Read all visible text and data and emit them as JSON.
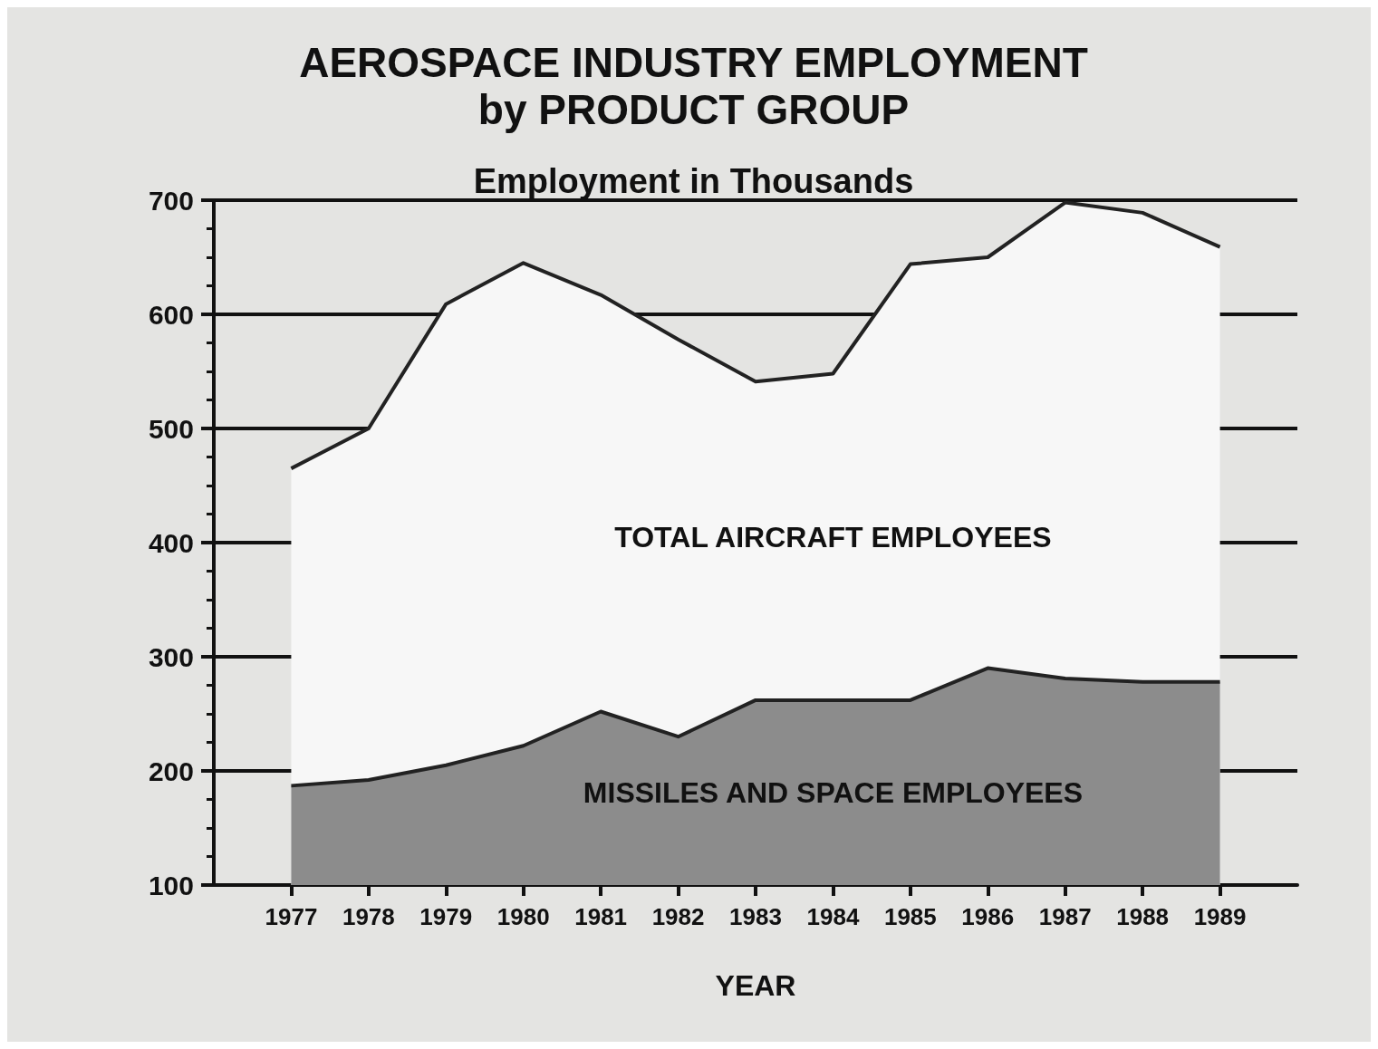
{
  "chart_data": {
    "type": "area",
    "title": "AEROSPACE INDUSTRY EMPLOYMENT\nby PRODUCT GROUP",
    "subtitle": "Employment in Thousands",
    "xlabel": "YEAR",
    "x": [
      1977,
      1978,
      1979,
      1980,
      1981,
      1982,
      1983,
      1984,
      1985,
      1986,
      1987,
      1988,
      1989
    ],
    "series": [
      {
        "name": "TOTAL AIRCRAFT EMPLOYEES",
        "color": "#f7f7f7",
        "values": [
          465,
          500,
          609,
          645,
          617,
          578,
          541,
          548,
          644,
          650,
          698,
          689,
          659
        ]
      },
      {
        "name": "MISSILES AND SPACE EMPLOYEES",
        "color": "#8c8c8c",
        "values": [
          187,
          192,
          205,
          222,
          252,
          230,
          262,
          262,
          262,
          290,
          281,
          278,
          278
        ]
      }
    ],
    "xlim": [
      1976,
      1990
    ],
    "xticks": [
      1977,
      1978,
      1979,
      1980,
      1981,
      1982,
      1983,
      1984,
      1985,
      1986,
      1987,
      1988,
      1989
    ],
    "ylim": [
      100,
      700
    ],
    "yticks": [
      100,
      200,
      300,
      400,
      500,
      600,
      700
    ],
    "grid": "y",
    "legend": false
  }
}
